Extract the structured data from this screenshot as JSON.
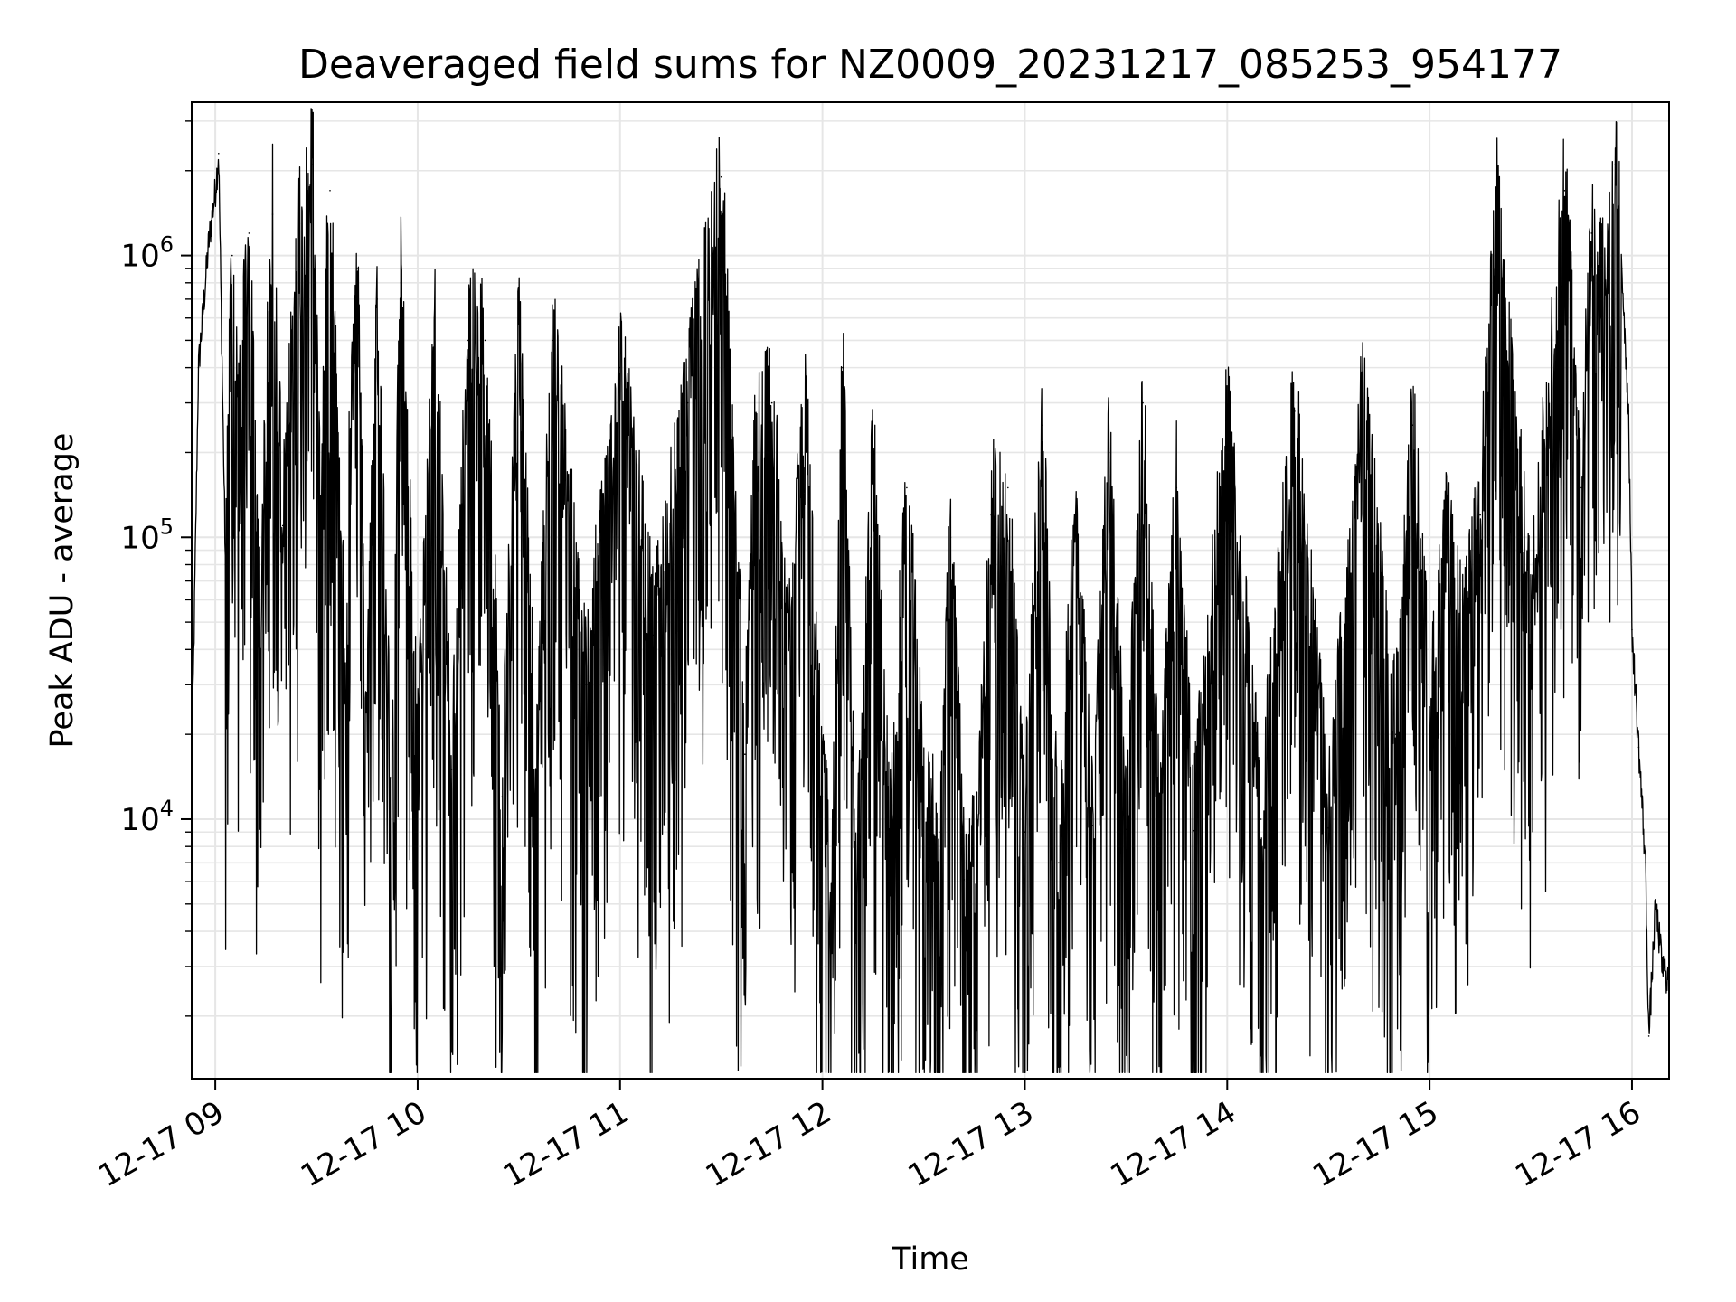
{
  "chart_data": {
    "type": "line",
    "title": "Deaveraged field sums for NZ0009_20231217_085253_954177",
    "xlabel": "Time",
    "ylabel": "Peak ADU - average",
    "y_scale": "log",
    "ylim": [
      1200,
      3500000
    ],
    "xlim": [
      "2023-12-17 08:53",
      "2023-12-17 16:11"
    ],
    "x_ticks": [
      {
        "value": "2023-12-17 09:00",
        "label": "12-17 09"
      },
      {
        "value": "2023-12-17 10:00",
        "label": "12-17 10"
      },
      {
        "value": "2023-12-17 11:00",
        "label": "12-17 11"
      },
      {
        "value": "2023-12-17 12:00",
        "label": "12-17 12"
      },
      {
        "value": "2023-12-17 13:00",
        "label": "12-17 13"
      },
      {
        "value": "2023-12-17 14:00",
        "label": "12-17 14"
      },
      {
        "value": "2023-12-17 15:00",
        "label": "12-17 15"
      },
      {
        "value": "2023-12-17 16:00",
        "label": "12-17 16"
      }
    ],
    "y_ticks": [
      {
        "value": 10000,
        "base": "10",
        "exp": "4"
      },
      {
        "value": 100000,
        "base": "10",
        "exp": "5"
      },
      {
        "value": 1000000,
        "base": "10",
        "exp": "6"
      }
    ],
    "grid": true,
    "line_color": "#000000",
    "grid_color": "#e6e6e6",
    "series": [
      {
        "x": [
          "2023-12-17 08:53",
          "2023-12-17 08:55",
          "2023-12-17 08:58",
          "2023-12-17 09:00",
          "2023-12-17 09:01",
          "2023-12-17 09:03",
          "2023-12-17 09:05",
          "2023-12-17 09:07",
          "2023-12-17 09:10",
          "2023-12-17 09:13",
          "2023-12-17 09:17",
          "2023-12-17 09:20",
          "2023-12-17 09:25",
          "2023-12-17 09:29",
          "2023-12-17 09:31",
          "2023-12-17 09:34",
          "2023-12-17 09:38",
          "2023-12-17 09:42",
          "2023-12-17 09:45",
          "2023-12-17 09:48",
          "2023-12-17 09:52",
          "2023-12-17 09:55",
          "2023-12-17 10:00",
          "2023-12-17 10:05",
          "2023-12-17 10:10",
          "2023-12-17 10:15",
          "2023-12-17 10:20",
          "2023-12-17 10:25",
          "2023-12-17 10:30",
          "2023-12-17 10:35",
          "2023-12-17 10:40",
          "2023-12-17 10:50",
          "2023-12-17 11:00",
          "2023-12-17 11:10",
          "2023-12-17 11:20",
          "2023-12-17 11:30",
          "2023-12-17 11:37",
          "2023-12-17 11:40",
          "2023-12-17 11:45",
          "2023-12-17 11:50",
          "2023-12-17 11:55",
          "2023-12-17 12:00",
          "2023-12-17 12:03",
          "2023-12-17 12:06",
          "2023-12-17 12:10",
          "2023-12-17 12:15",
          "2023-12-17 12:20",
          "2023-12-17 12:25",
          "2023-12-17 12:30",
          "2023-12-17 12:35",
          "2023-12-17 12:38",
          "2023-12-17 12:42",
          "2023-12-17 12:46",
          "2023-12-17 12:50",
          "2023-12-17 12:55",
          "2023-12-17 13:00",
          "2023-12-17 13:05",
          "2023-12-17 13:10",
          "2023-12-17 13:15",
          "2023-12-17 13:20",
          "2023-12-17 13:25",
          "2023-12-17 13:30",
          "2023-12-17 13:35",
          "2023-12-17 13:40",
          "2023-12-17 13:45",
          "2023-12-17 13:50",
          "2023-12-17 14:00",
          "2023-12-17 14:10",
          "2023-12-17 14:20",
          "2023-12-17 14:30",
          "2023-12-17 14:40",
          "2023-12-17 14:50",
          "2023-12-17 14:55",
          "2023-12-17 15:00",
          "2023-12-17 15:05",
          "2023-12-17 15:10",
          "2023-12-17 15:15",
          "2023-12-17 15:20",
          "2023-12-17 15:30",
          "2023-12-17 15:40",
          "2023-12-17 15:45",
          "2023-12-17 15:48",
          "2023-12-17 15:52",
          "2023-12-17 15:55",
          "2023-12-17 15:57",
          "2023-12-17 15:59",
          "2023-12-17 16:00",
          "2023-12-17 16:02",
          "2023-12-17 16:04",
          "2023-12-17 16:05",
          "2023-12-17 16:07",
          "2023-12-17 16:09",
          "2023-12-17 16:11"
        ],
        "y": [
          14000,
          400000,
          1100000,
          1700000,
          2300000,
          80000,
          1000000,
          250000,
          1200000,
          50000,
          1400000,
          110000,
          1300000,
          2100000,
          130000,
          1700000,
          50000,
          900000,
          27000,
          700000,
          14000,
          800000,
          17000,
          600000,
          15000,
          500000,
          500000,
          12000,
          600000,
          14000,
          500000,
          30000,
          400000,
          45000,
          300000,
          1900000,
          17000,
          200000,
          300000,
          40000,
          300000,
          12000,
          6800,
          400000,
          5200,
          200000,
          8000,
          150000,
          11000,
          9000,
          100000,
          6100,
          8200,
          120000,
          150000,
          9000,
          250000,
          7000,
          120000,
          9500,
          200000,
          9200,
          300000,
          8600,
          150000,
          9100,
          250000,
          10000,
          280000,
          9300,
          300000,
          20000,
          250000,
          25000,
          100000,
          40000,
          120000,
          1500000,
          50000,
          1700000,
          150000,
          1200000,
          800000,
          2100000,
          900000,
          280000,
          47000,
          18000,
          7000,
          1700,
          5000,
          3000,
          2700
        ]
      }
    ]
  }
}
